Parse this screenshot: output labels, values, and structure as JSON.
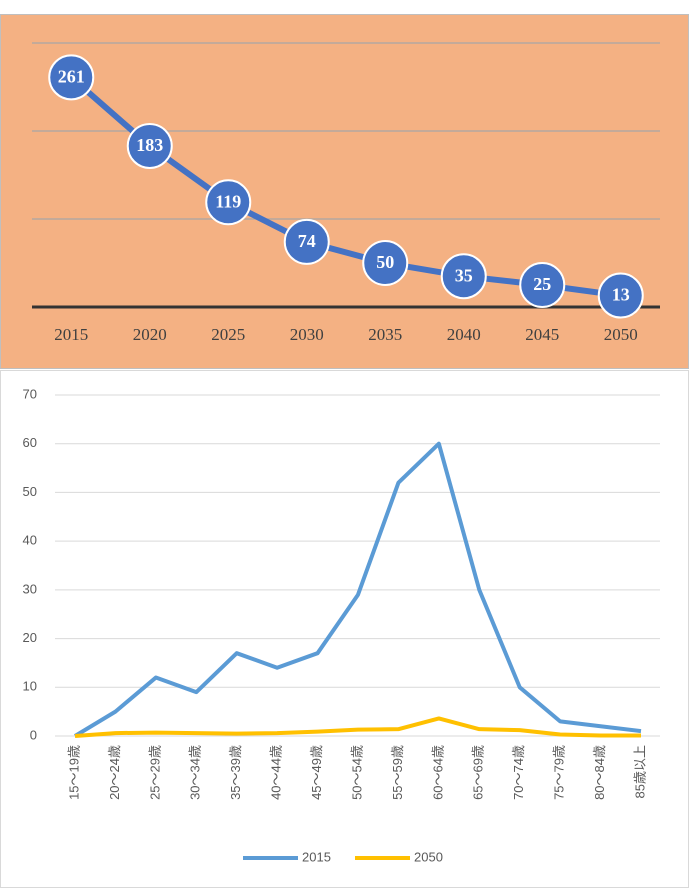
{
  "chart_data": [
    {
      "type": "line",
      "categories": [
        "2015",
        "2020",
        "2025",
        "2030",
        "2035",
        "2040",
        "2045",
        "2050"
      ],
      "values": [
        261,
        183,
        119,
        74,
        50,
        35,
        25,
        13
      ],
      "color": "#4472c4",
      "ylim": [
        0,
        300
      ],
      "yticks": [
        0,
        100,
        200,
        300
      ],
      "grid": true
    },
    {
      "type": "line",
      "categories": [
        "15～19歳",
        "20～24歳",
        "25～29歳",
        "30～34歳",
        "35～39歳",
        "40～44歳",
        "45～49歳",
        "50～54歳",
        "55～59歳",
        "60～64歳",
        "65～69歳",
        "70～74歳",
        "75～79歳",
        "80～84歳",
        "85歳以上"
      ],
      "series": [
        {
          "name": "2015",
          "color": "#5b9bd5",
          "values": [
            0,
            5,
            12,
            9,
            17,
            14,
            17,
            29,
            52,
            60,
            30,
            10,
            3,
            2,
            1
          ]
        },
        {
          "name": "2050",
          "color": "#ffc000",
          "values": [
            0,
            0.6,
            0.7,
            0.6,
            0.5,
            0.6,
            0.9,
            1.3,
            1.4,
            3.6,
            1.4,
            1.2,
            0.3,
            0.1,
            0.1
          ]
        }
      ],
      "ylim": [
        0,
        70
      ],
      "yticks": [
        0,
        10,
        20,
        30,
        40,
        50,
        60,
        70
      ],
      "grid": true,
      "legend": "bottom"
    }
  ]
}
